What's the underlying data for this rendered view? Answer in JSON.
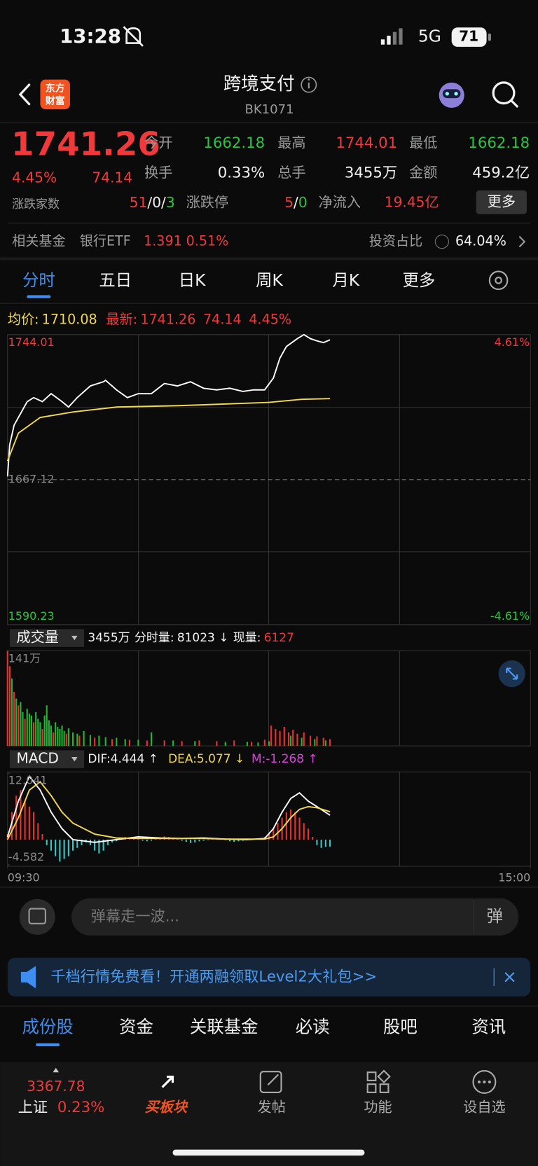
{
  "status_bar": {
    "time": "13:28",
    "network": "5G",
    "battery": "71"
  },
  "header": {
    "logo": [
      "东方",
      "财富"
    ],
    "title": "跨境支付",
    "code": "BK1071"
  },
  "quote": {
    "price": "1741.26",
    "change_pct": "4.45%",
    "change": "74.14",
    "stats": [
      {
        "label": "今开",
        "value": "1662.18"
      },
      {
        "label": "最高",
        "value": "1744.01"
      },
      {
        "label": "最低",
        "value": "1662.18"
      },
      {
        "label": "换手",
        "value": "0.33%"
      },
      {
        "label": "总手",
        "value": "3455万"
      },
      {
        "label": "金额",
        "value": "459.2亿"
      }
    ],
    "breadth_label": "涨跌家数",
    "breadth": [
      "51",
      "0",
      "3"
    ],
    "separator": "/",
    "limit_label": "涨跌停",
    "limit": [
      "5",
      "0"
    ],
    "inflow_label": "净流入",
    "inflow": "19.45亿",
    "more": "更多"
  },
  "fund_bar": {
    "label": "相关基金",
    "fund": "银行ETF",
    "price": "1.391",
    "pct": "0.51%",
    "ratio_label": "投资占比",
    "ratio": "64.04%"
  },
  "tabs": [
    "分时",
    "五日",
    "日K",
    "周K",
    "月K",
    "更多"
  ],
  "legend": {
    "avg_label": "均价:",
    "avg": "1710.08",
    "last_label": "最新:",
    "last": "1741.26",
    "change": "74.14",
    "pct": "4.45%"
  },
  "volume_header": {
    "selector": "成交量",
    "total": "3455万",
    "minute_label": "分时量:",
    "minute": "81023 ↓",
    "now_label": "现量:",
    "now": "6127"
  },
  "macd_header": {
    "selector": "MACD",
    "dif": "DIF:4.444 ↑",
    "dea": "DEA:5.077 ↓",
    "m": "M:-1.268 ↑"
  },
  "chart_data": [
    {
      "type": "line",
      "xlim": [
        0,
        240
      ],
      "ylim": [
        1590.23,
        1744.01
      ],
      "yticks": [
        1590.23,
        1667.12,
        1744.01
      ],
      "y2lim": [
        -4.61,
        4.61
      ],
      "y2ticks": [
        {
          "value": -4.61,
          "label": "-4.61%"
        },
        {
          "value": 4.61,
          "label": "4.61%"
        }
      ],
      "grid": true,
      "series": [
        {
          "color": "#ffffff",
          "x": [
            0,
            1,
            3,
            6,
            9,
            12,
            16,
            20,
            25,
            28,
            32,
            38,
            44,
            45,
            50,
            55,
            60,
            66,
            72,
            78,
            84,
            90,
            96,
            102,
            108,
            113,
            118,
            122,
            125,
            128,
            133,
            136,
            139,
            142,
            145,
            148
          ],
          "values": [
            1668.8,
            1685.5,
            1696,
            1702.2,
            1708.5,
            1710.6,
            1708.5,
            1712.7,
            1708.5,
            1705.6,
            1710.6,
            1716.8,
            1719,
            1719.8,
            1714.7,
            1710.6,
            1712.7,
            1712.7,
            1718.1,
            1716.8,
            1719,
            1715.6,
            1714.7,
            1715.6,
            1713.9,
            1714.7,
            1714.7,
            1721,
            1731.5,
            1737.7,
            1741.9,
            1744.01,
            1741.9,
            1740.7,
            1739.8,
            1741.26
          ]
        },
        {
          "color": "#f2d94e",
          "x": [
            0,
            5,
            15,
            30,
            50,
            80,
            120,
            135,
            148
          ],
          "values": [
            1677,
            1691.8,
            1700.1,
            1703,
            1705.6,
            1706.4,
            1708.1,
            1709.7,
            1710.08
          ]
        }
      ]
    },
    {
      "type": "bar",
      "xlim": [
        0,
        240
      ],
      "ylim": [
        0,
        141
      ],
      "yticks": [
        {
          "value": 141,
          "label": "141万"
        }
      ],
      "series": [
        {
          "color": "#e8312f",
          "x": [
            0,
            1,
            3,
            5,
            8,
            12,
            16,
            21,
            27,
            33,
            40,
            48,
            56,
            64,
            72,
            80,
            88,
            96,
            104,
            112,
            118,
            121,
            123,
            125,
            127,
            129,
            131,
            133,
            136,
            139,
            142,
            145,
            148
          ],
          "values": [
            141,
            118,
            80,
            60,
            40,
            35,
            25,
            20,
            18,
            15,
            12,
            10,
            9,
            8,
            8,
            7,
            8,
            7,
            8,
            6,
            9,
            30,
            25,
            22,
            28,
            20,
            24,
            18,
            20,
            15,
            14,
            12,
            10
          ]
        },
        {
          "color": "#21b534",
          "x": [
            2,
            4,
            6,
            7,
            9,
            10,
            11,
            13,
            14,
            15,
            17,
            18,
            19,
            20,
            22,
            23,
            24,
            25,
            26,
            28,
            30,
            32,
            35,
            38,
            42,
            45,
            50,
            54,
            60,
            66,
            76,
            86,
            100,
            110,
            115,
            120,
            130,
            135,
            141,
            146
          ],
          "values": [
            100,
            70,
            65,
            50,
            55,
            48,
            45,
            50,
            40,
            35,
            45,
            60,
            38,
            30,
            35,
            28,
            25,
            30,
            22,
            26,
            20,
            18,
            22,
            16,
            15,
            13,
            12,
            10,
            9,
            20,
            8,
            7,
            6,
            6,
            5,
            7,
            15,
            12,
            10,
            8
          ]
        }
      ]
    },
    {
      "type": "macd",
      "xlim": [
        0,
        240
      ],
      "xticks": [
        {
          "value": 0,
          "label": "09:30"
        },
        {
          "value": 240,
          "label": "15:00"
        }
      ],
      "ylim": [
        -4.582,
        12.041
      ],
      "yticks": [
        -4.582,
        12.041
      ],
      "histogram": {
        "color_positive": "#e8312f",
        "color_negative": "#35c6c6",
        "x": [
          0,
          2,
          4,
          6,
          8,
          10,
          12,
          14,
          16,
          18,
          20,
          22,
          24,
          26,
          28,
          30,
          32,
          34,
          36,
          38,
          40,
          42,
          44,
          46,
          48,
          50,
          52,
          54,
          56,
          58,
          60,
          62,
          64,
          66,
          68,
          70,
          72,
          74,
          76,
          78,
          80,
          82,
          84,
          86,
          88,
          90,
          92,
          94,
          96,
          98,
          100,
          102,
          104,
          106,
          108,
          110,
          112,
          114,
          116,
          118,
          120,
          122,
          124,
          126,
          128,
          130,
          132,
          134,
          136,
          138,
          140,
          142,
          144,
          146,
          148
        ],
        "values": [
          1,
          5,
          8,
          9,
          7,
          6,
          5,
          3,
          1,
          -1,
          -2,
          -3,
          -4,
          -3.5,
          -3,
          -2,
          -1.5,
          -1,
          -0.5,
          -1,
          -2,
          -2.5,
          -2,
          -1,
          -0.5,
          -0.3,
          0.3,
          0.5,
          0.4,
          0.2,
          0.1,
          -0.2,
          -0.3,
          -0.2,
          0.2,
          0.4,
          0.6,
          0.5,
          0.3,
          0.1,
          -0.2,
          -0.4,
          -0.6,
          -0.5,
          -0.3,
          -0.2,
          -0.1,
          0.1,
          0.2,
          0.1,
          -0.1,
          -0.3,
          -0.4,
          -0.3,
          -0.2,
          -0.1,
          0.1,
          0.2,
          0.3,
          0.5,
          1,
          2,
          3,
          4,
          5,
          5.5,
          5,
          4,
          3,
          2,
          0.5,
          -1,
          -1.5,
          -1.3,
          -1.268
        ]
      },
      "series": [
        {
          "color": "#ffffff",
          "x": [
            0,
            5,
            10,
            15,
            20,
            25,
            30,
            40,
            50,
            60,
            70,
            80,
            90,
            100,
            110,
            118,
            122,
            126,
            130,
            134,
            138,
            142,
            148
          ],
          "values": [
            0.5,
            7,
            11.5,
            9,
            5,
            2,
            0,
            -0.5,
            0,
            0.5,
            0.3,
            0.2,
            0.3,
            0.1,
            0,
            0.2,
            2,
            5,
            7.5,
            8.5,
            7,
            6,
            4.444
          ]
        },
        {
          "color": "#f2d94e",
          "x": [
            0,
            5,
            10,
            15,
            20,
            25,
            30,
            40,
            50,
            60,
            70,
            80,
            90,
            100,
            110,
            118,
            122,
            126,
            130,
            134,
            138,
            142,
            148
          ],
          "values": [
            0,
            4,
            9,
            10.5,
            8,
            5,
            3,
            1,
            0.3,
            0.2,
            0.2,
            0.2,
            0.2,
            0.1,
            0.1,
            0.1,
            0.5,
            2,
            4,
            5.5,
            6,
            5.8,
            5.077
          ]
        }
      ]
    }
  ],
  "comment_placeholder": "弹幕走一波...",
  "danmu": "弹",
  "banner": "千档行情免费看！开通两融领取Level2大礼包>>",
  "bottom_tabs": [
    "成份股",
    "资金",
    "关联基金",
    "必读",
    "股吧",
    "资讯"
  ],
  "nav": {
    "index_value": "3367.78",
    "index_name": "上证",
    "index_pct": "0.23%",
    "items": [
      "买板块",
      "发帖",
      "功能",
      "设自选"
    ]
  }
}
